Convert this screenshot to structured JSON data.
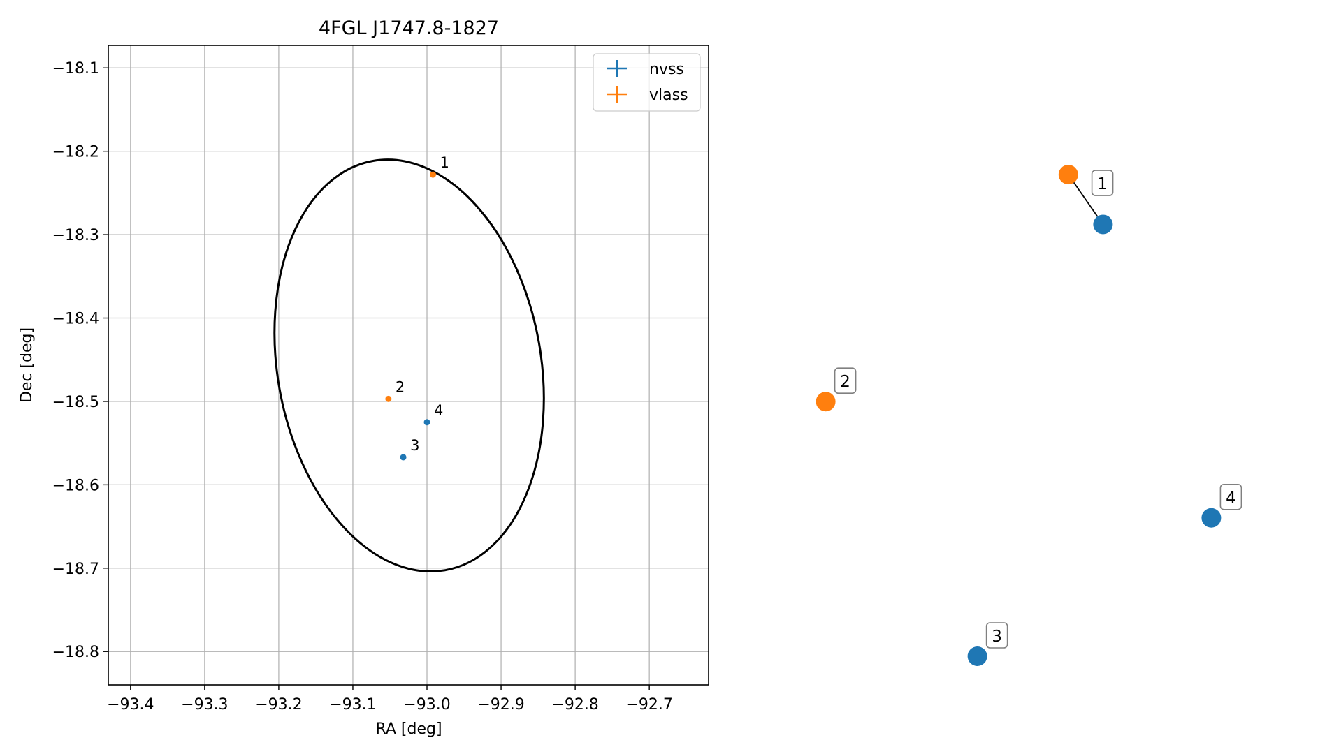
{
  "chart_data": [
    {
      "type": "scatter",
      "title": "4FGL J1747.8-1827",
      "xlabel": "RA [deg]",
      "ylabel": "Dec [deg]",
      "xlim": [
        -93.43,
        -92.62
      ],
      "ylim": [
        -18.84,
        -18.073
      ],
      "x_ticks": [
        -93.4,
        -93.3,
        -93.2,
        -93.1,
        -93.0,
        -92.9,
        -92.8,
        -92.7
      ],
      "x_tick_labels": [
        "−93.4",
        "−93.3",
        "−93.2",
        "−93.1",
        "−93.0",
        "−92.9",
        "−92.8",
        "−92.7"
      ],
      "y_ticks": [
        -18.1,
        -18.2,
        -18.3,
        -18.4,
        -18.5,
        -18.6,
        -18.7,
        -18.8
      ],
      "y_tick_labels": [
        "−18.1",
        "−18.2",
        "−18.3",
        "−18.4",
        "−18.5",
        "−18.6",
        "−18.7",
        "−18.8"
      ],
      "grid": true,
      "legend_position": "top-right",
      "ellipse": {
        "center_ra": -93.024,
        "center_dec": -18.457,
        "ra_min": -93.207,
        "ra_max": -92.846,
        "dec_min": -18.71,
        "dec_max": -18.204
      },
      "series": [
        {
          "name": "nvss",
          "color": "#1f77b4",
          "points": [
            {
              "label": "3",
              "ra": -93.032,
              "dec": -18.567
            },
            {
              "label": "4",
              "ra": -93.0,
              "dec": -18.525
            }
          ]
        },
        {
          "name": "vlass",
          "color": "#ff7f0e",
          "points": [
            {
              "label": "1",
              "ra": -92.992,
              "dec": -18.228
            },
            {
              "label": "2",
              "ra": -93.052,
              "dec": -18.497
            }
          ]
        }
      ]
    },
    {
      "type": "scatter",
      "title": "",
      "nodes": [
        {
          "label": "1",
          "group": "vlass",
          "color": "#ff7f0e",
          "x": 0.64,
          "y": 0.87
        },
        {
          "label": "1",
          "group": "nvss",
          "color": "#1f77b4",
          "x": 0.72,
          "y": 0.78
        },
        {
          "label": "2",
          "group": "vlass",
          "color": "#ff7f0e",
          "x": 0.08,
          "y": 0.46
        },
        {
          "label": "4",
          "group": "nvss",
          "color": "#1f77b4",
          "x": 0.97,
          "y": 0.25
        },
        {
          "label": "3",
          "group": "nvss",
          "color": "#1f77b4",
          "x": 0.43,
          "y": 0.0
        }
      ],
      "edges": [
        {
          "from": 0,
          "to": 1
        }
      ]
    }
  ]
}
